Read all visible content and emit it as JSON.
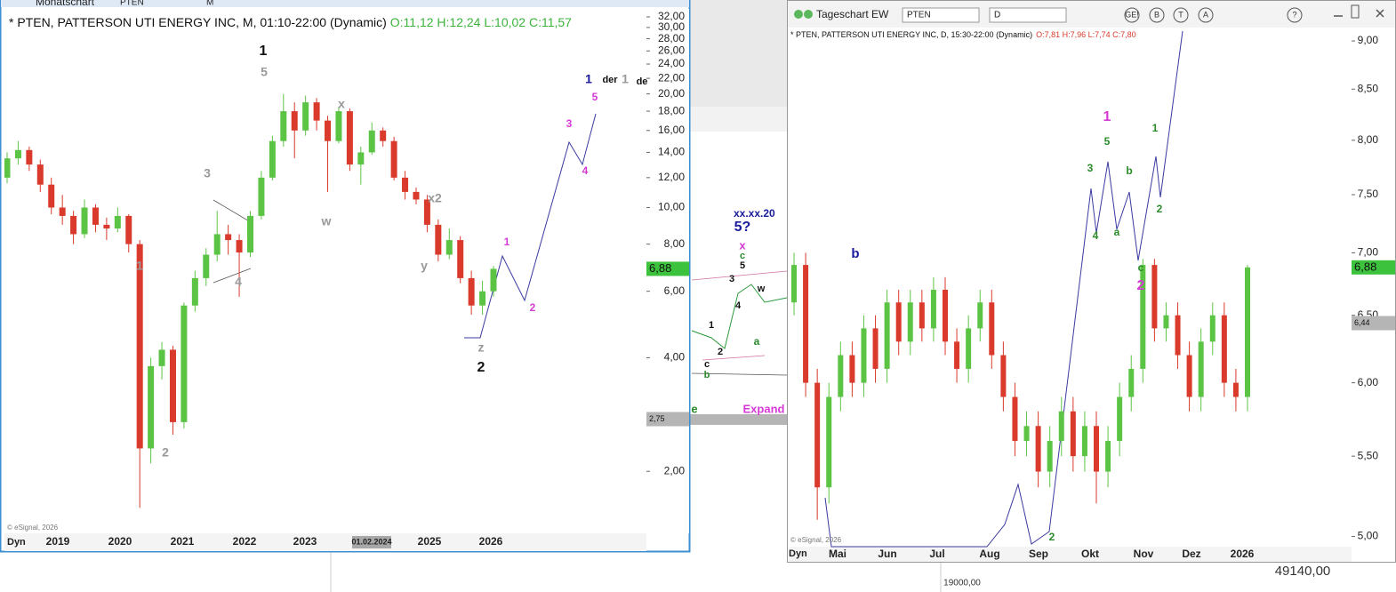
{
  "chart_data": [
    {
      "type": "candlestick",
      "window_title": "Monatschart",
      "symbol": "PTEN",
      "interval": "M",
      "title": "* PTEN, PATTERSON UTI ENERGY INC, M, 01:10-22:00 (Dynamic)",
      "subtitle": "O:11,12 H:12,24 L:10,02 C:11,57",
      "subtitle_color": "#3cb43c",
      "copyright": "© eSignal, 2026",
      "dyn": "Dyn",
      "log": true,
      "ylim": [
        1.37,
        33.6
      ],
      "yticks": [
        {
          "value": 32,
          "label": "32,00"
        },
        {
          "value": 30,
          "label": "30,00"
        },
        {
          "value": 28,
          "label": "28,00"
        },
        {
          "value": 26,
          "label": "26,00"
        },
        {
          "value": 24,
          "label": "24,00"
        },
        {
          "value": 22,
          "label": "22,00"
        },
        {
          "value": 20,
          "label": "20,00"
        },
        {
          "value": 18,
          "label": "18,00"
        },
        {
          "value": 16,
          "label": "16,00"
        },
        {
          "value": 14,
          "label": "14,00"
        },
        {
          "value": 12,
          "label": "12,00"
        },
        {
          "value": 10,
          "label": "10,00"
        },
        {
          "value": 8,
          "label": "8,00"
        },
        {
          "value": 6,
          "label": "6,00"
        },
        {
          "value": 4,
          "label": "4,00"
        },
        {
          "value": 2,
          "label": "2,00"
        }
      ],
      "xtick_labels": [
        "2019",
        "2020",
        "2021",
        "2022",
        "2023",
        "01.02.2024",
        "2025",
        "2026"
      ],
      "up_color": "#5cc445",
      "down_color": "#d93a2b",
      "price_markers": [
        {
          "value": 6.88,
          "label": "6,88",
          "color": "#3cc23c"
        },
        {
          "value": 2.75,
          "label": "2,75",
          "color": "#b5b5b5"
        }
      ],
      "candles": [
        [
          12,
          14,
          11.6,
          13.5
        ],
        [
          13.5,
          15,
          13,
          14.2
        ],
        [
          14.2,
          14.5,
          12.5,
          13
        ],
        [
          13,
          13.4,
          11,
          11.5
        ],
        [
          11.5,
          12,
          9.6,
          10
        ],
        [
          10,
          10.8,
          9,
          9.5
        ],
        [
          9.5,
          9.8,
          8,
          8.5
        ],
        [
          8.5,
          10.5,
          8.3,
          10
        ],
        [
          10,
          10.2,
          8.6,
          9
        ],
        [
          9,
          9.4,
          8.2,
          8.8
        ],
        [
          8.8,
          10,
          8.6,
          9.5
        ],
        [
          9.5,
          9.6,
          7.6,
          8
        ],
        [
          8,
          8.2,
          1.6,
          2.3
        ],
        [
          2.3,
          4,
          2.1,
          3.8
        ],
        [
          3.8,
          4.4,
          3.5,
          4.2
        ],
        [
          4.2,
          4.3,
          2.5,
          2.7
        ],
        [
          2.7,
          5.6,
          2.6,
          5.5
        ],
        [
          5.5,
          6.8,
          5.3,
          6.5
        ],
        [
          6.5,
          7.8,
          6.2,
          7.5
        ],
        [
          7.5,
          9.8,
          7.2,
          8.5
        ],
        [
          8.5,
          9,
          7.5,
          8.2
        ],
        [
          8.2,
          8.5,
          5.8,
          7.6
        ],
        [
          7.6,
          9.8,
          7.4,
          9.5
        ],
        [
          9.5,
          12.5,
          9.3,
          12
        ],
        [
          12,
          15.5,
          11.8,
          15
        ],
        [
          15,
          20,
          14.5,
          18
        ],
        [
          18,
          19,
          13.5,
          16
        ],
        [
          16,
          19.8,
          15.5,
          19
        ],
        [
          19,
          19.5,
          16,
          17
        ],
        [
          17,
          17.5,
          11,
          15
        ],
        [
          15,
          18.5,
          14.8,
          18
        ],
        [
          18,
          18.3,
          12.5,
          13
        ],
        [
          13,
          14.5,
          11.5,
          14
        ],
        [
          14,
          16.8,
          13.8,
          16
        ],
        [
          16,
          16.3,
          14.5,
          15
        ],
        [
          15,
          15.4,
          11.8,
          12
        ],
        [
          12,
          12.5,
          10.5,
          11
        ],
        [
          11,
          11.3,
          10.2,
          10.5
        ],
        [
          10.5,
          10.8,
          8.6,
          9
        ],
        [
          9,
          9.3,
          7.2,
          7.5
        ],
        [
          7.5,
          8.8,
          7.3,
          8.2
        ],
        [
          8.2,
          8.4,
          6.3,
          6.5
        ],
        [
          6.5,
          6.8,
          5.2,
          5.5
        ],
        [
          5.5,
          6.4,
          5.2,
          6
        ],
        [
          6,
          7,
          5.8,
          6.88
        ]
      ],
      "annotations": [
        {
          "text": "1",
          "color": "#111111"
        },
        {
          "text": "5",
          "color": "#999999"
        },
        {
          "text": "3",
          "color": "#999999"
        },
        {
          "text": "x",
          "color": "#999999"
        },
        {
          "text": "w",
          "color": "#999999"
        },
        {
          "text": "x2",
          "color": "#999999"
        },
        {
          "text": "y",
          "color": "#999999"
        },
        {
          "text": "1",
          "color": "#999999"
        },
        {
          "text": "2",
          "color": "#999999"
        },
        {
          "text": "4",
          "color": "#999999"
        },
        {
          "text": "z",
          "color": "#999999"
        },
        {
          "text": "2",
          "color": "#111111"
        },
        {
          "text": "1",
          "color": "#d63ad6"
        },
        {
          "text": "2",
          "color": "#d63ad6"
        },
        {
          "text": "3",
          "color": "#d63ad6"
        },
        {
          "text": "4",
          "color": "#d63ad6"
        },
        {
          "text": "5",
          "color": "#d63ad6"
        },
        {
          "text": "1",
          "color": "#1a1a9c"
        },
        {
          "text": "der",
          "color": "#111111"
        },
        {
          "text": "1",
          "color": "#999999"
        },
        {
          "text": "de",
          "color": "#111111"
        }
      ]
    },
    {
      "type": "candlestick",
      "window_title": "Tageschart EW",
      "symbol": "PTEN",
      "interval": "D",
      "title": "* PTEN, PATTERSON UTI ENERGY INC, D, 15:30-22:00 (Dynamic)",
      "subtitle": "O:7,81 H:7,96 L:7,74 C:7,80",
      "subtitle_color": "#d93a2b",
      "copyright": "© eSignal, 2026",
      "dyn": "Dyn",
      "toolbar_icons": [
        "GE!",
        "B",
        "T",
        "A",
        "?"
      ],
      "log": true,
      "ylim": [
        4.94,
        9.01
      ],
      "yticks": [
        {
          "value": 9,
          "label": "9,00"
        },
        {
          "value": 8.5,
          "label": "8,50"
        },
        {
          "value": 8,
          "label": "8,00"
        },
        {
          "value": 7.5,
          "label": "7,50"
        },
        {
          "value": 7,
          "label": "7,00"
        },
        {
          "value": 6.5,
          "label": "6,50"
        },
        {
          "value": 6,
          "label": "6,00"
        },
        {
          "value": 5.5,
          "label": "5,50"
        },
        {
          "value": 5,
          "label": "5,00"
        }
      ],
      "xtick_labels": [
        "Mai",
        "Jun",
        "Jul",
        "Aug",
        "Sep",
        "Okt",
        "Nov",
        "Dez",
        "2026"
      ],
      "up_color": "#5cc445",
      "down_color": "#d93a2b",
      "price_markers": [
        {
          "value": 6.88,
          "label": "6,88",
          "color": "#3cc23c"
        },
        {
          "value": 6.44,
          "label": "6,44",
          "color": "#b5b5b5"
        }
      ],
      "candles": [
        [
          6.6,
          7.0,
          6.5,
          6.9
        ],
        [
          6.9,
          7.0,
          5.9,
          6.0
        ],
        [
          6.0,
          6.1,
          5.1,
          5.3
        ],
        [
          5.3,
          6.0,
          5.2,
          5.9
        ],
        [
          5.9,
          6.3,
          5.8,
          6.2
        ],
        [
          6.2,
          6.3,
          5.9,
          6.0
        ],
        [
          6.0,
          6.5,
          5.9,
          6.4
        ],
        [
          6.4,
          6.5,
          6.0,
          6.1
        ],
        [
          6.1,
          6.7,
          6.0,
          6.6
        ],
        [
          6.6,
          6.7,
          6.2,
          6.3
        ],
        [
          6.3,
          6.7,
          6.2,
          6.6
        ],
        [
          6.6,
          6.7,
          6.3,
          6.4
        ],
        [
          6.4,
          6.8,
          6.3,
          6.7
        ],
        [
          6.7,
          6.8,
          6.2,
          6.3
        ],
        [
          6.3,
          6.4,
          6.0,
          6.1
        ],
        [
          6.1,
          6.5,
          6.0,
          6.4
        ],
        [
          6.4,
          6.7,
          6.3,
          6.6
        ],
        [
          6.6,
          6.7,
          6.1,
          6.2
        ],
        [
          6.2,
          6.3,
          5.8,
          5.9
        ],
        [
          5.9,
          6.0,
          5.5,
          5.6
        ],
        [
          5.6,
          5.8,
          5.5,
          5.7
        ],
        [
          5.7,
          5.8,
          5.3,
          5.4
        ],
        [
          5.4,
          5.7,
          5.3,
          5.6
        ],
        [
          5.6,
          5.9,
          5.5,
          5.8
        ],
        [
          5.8,
          5.9,
          5.4,
          5.5
        ],
        [
          5.5,
          5.8,
          5.4,
          5.7
        ],
        [
          5.7,
          5.8,
          5.2,
          5.4
        ],
        [
          5.4,
          5.7,
          5.3,
          5.6
        ],
        [
          5.6,
          6.0,
          5.5,
          5.9
        ],
        [
          5.9,
          6.2,
          5.8,
          6.1
        ],
        [
          6.1,
          6.95,
          6.0,
          6.9
        ],
        [
          6.9,
          6.95,
          6.3,
          6.4
        ],
        [
          6.4,
          6.6,
          6.3,
          6.5
        ],
        [
          6.5,
          6.6,
          6.1,
          6.2
        ],
        [
          6.2,
          6.3,
          5.8,
          5.9
        ],
        [
          5.9,
          6.4,
          5.8,
          6.3
        ],
        [
          6.3,
          6.6,
          6.2,
          6.5
        ],
        [
          6.5,
          6.6,
          5.9,
          6.0
        ],
        [
          6.0,
          6.1,
          5.8,
          5.9
        ],
        [
          5.9,
          6.9,
          5.8,
          6.88
        ]
      ],
      "annotations": [
        {
          "text": "b",
          "color": "#1a1a9c"
        },
        {
          "text": "1",
          "color": "#d63ad6"
        },
        {
          "text": "5",
          "color": "#2a8a2a"
        },
        {
          "text": "3",
          "color": "#2a8a2a"
        },
        {
          "text": "b",
          "color": "#2a8a2a"
        },
        {
          "text": "1",
          "color": "#2a8a2a"
        },
        {
          "text": "4",
          "color": "#2a8a2a"
        },
        {
          "text": "a",
          "color": "#2a8a2a"
        },
        {
          "text": "2",
          "color": "#2a8a2a"
        },
        {
          "text": "c",
          "color": "#2a8a2a"
        },
        {
          "text": "2",
          "color": "#d63ad6"
        },
        {
          "text": "2",
          "color": "#2a8a2a"
        }
      ]
    }
  ],
  "background_window": {
    "annotations": [
      {
        "text": "xx.xx.20",
        "color": "#1a1a9c"
      },
      {
        "text": "5?",
        "color": "#1a1a9c"
      },
      {
        "text": "x",
        "color": "#d63ad6"
      },
      {
        "text": "c",
        "color": "#2a8a2a"
      },
      {
        "text": "5",
        "color": "#111111"
      },
      {
        "text": "3",
        "color": "#111111"
      },
      {
        "text": "w",
        "color": "#111111"
      },
      {
        "text": "4",
        "color": "#111111"
      },
      {
        "text": "a",
        "color": "#2a8a2a"
      },
      {
        "text": "1",
        "color": "#111111"
      },
      {
        "text": "2",
        "color": "#111111"
      },
      {
        "text": "c",
        "color": "#111111"
      },
      {
        "text": "b",
        "color": "#2a8a2a"
      },
      {
        "text": "e",
        "color": "#2a8a2a"
      },
      {
        "text": "Expand",
        "color": "#d63ad6"
      }
    ],
    "footer_values": [
      "49140,00",
      "19000,00"
    ]
  }
}
